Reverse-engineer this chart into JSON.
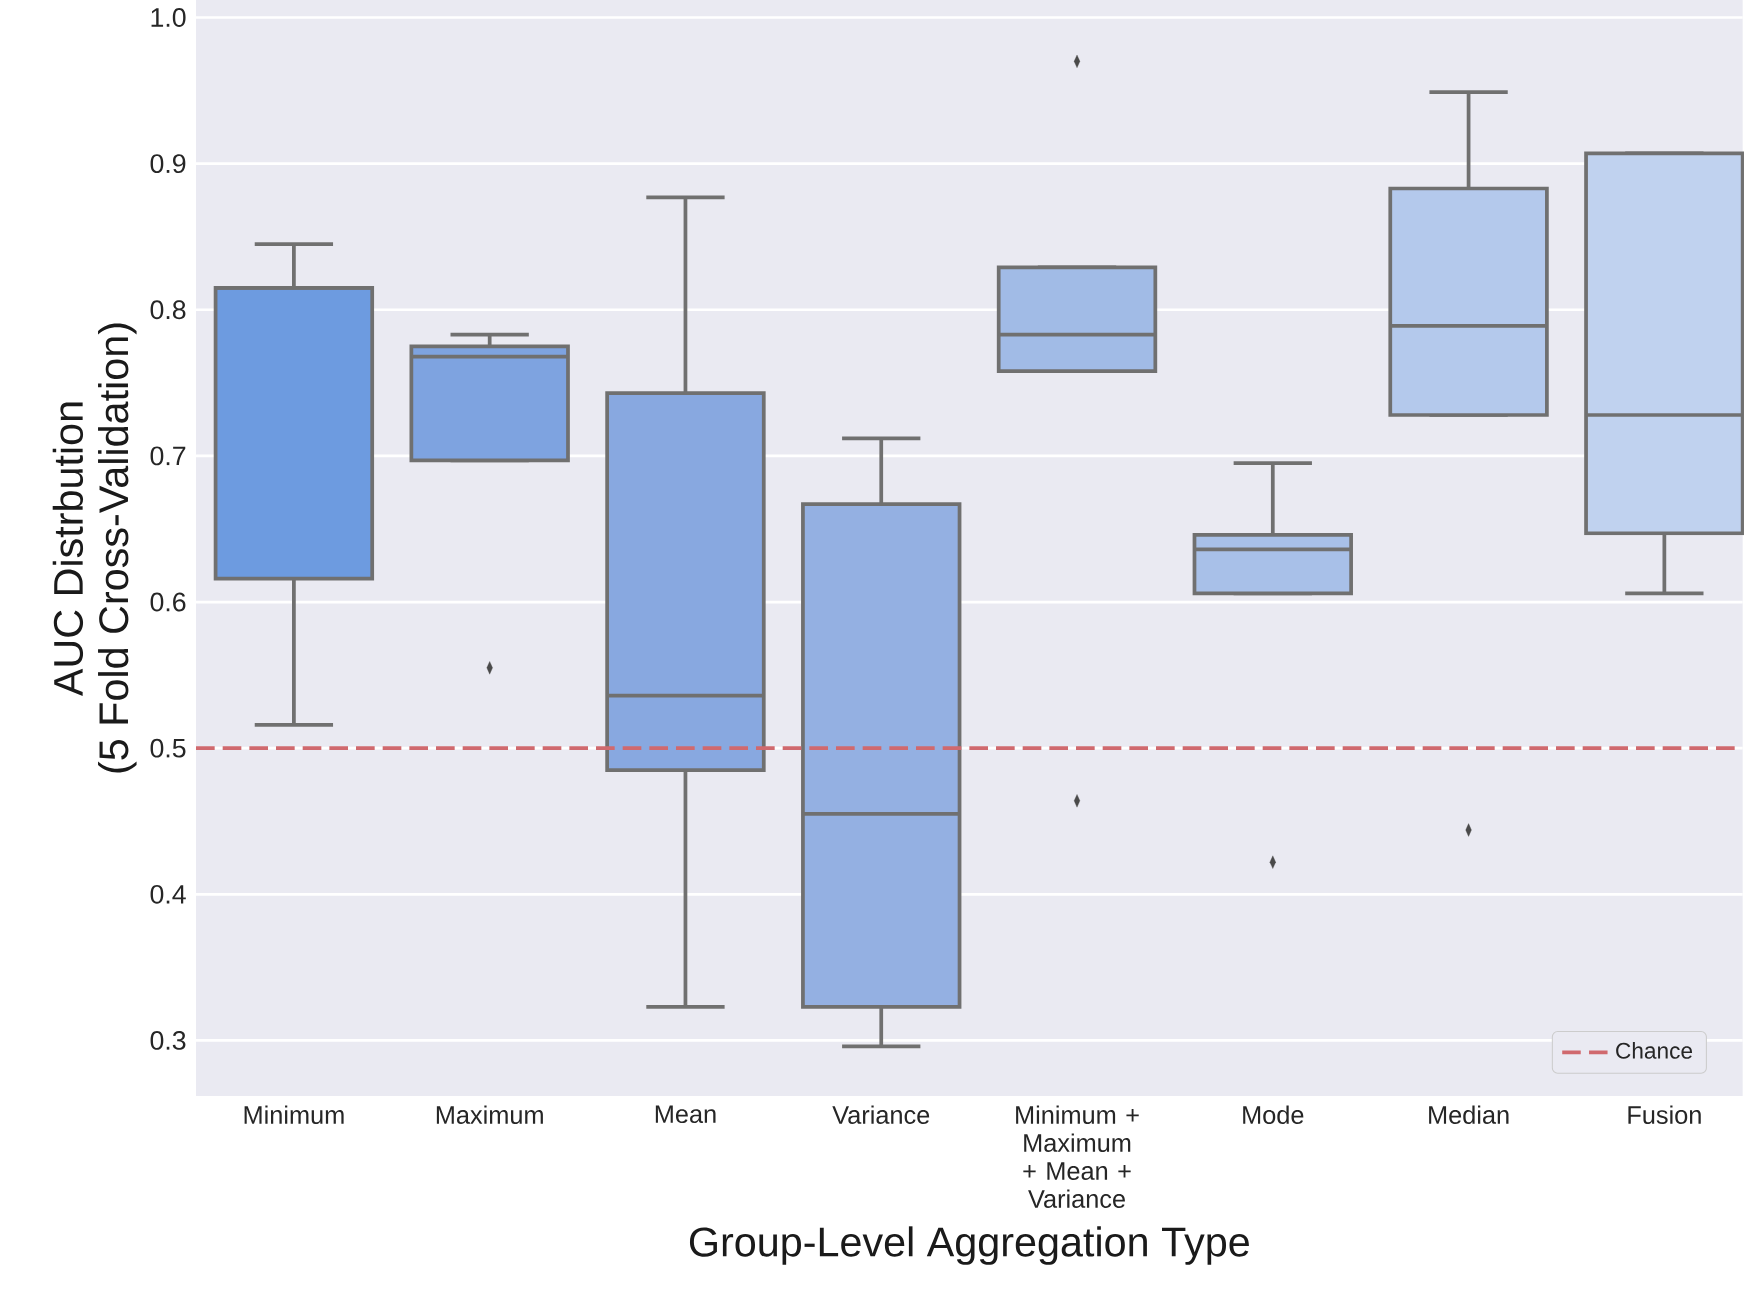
{
  "chart_data": {
    "type": "box",
    "xlabel": "Group-Level Aggregation Type",
    "ylabel": "AUC Distrbution\n(5 Fold Cross-Validation)",
    "categories": [
      "Minimum",
      "Maximum",
      "Mean",
      "Variance",
      "Minimum + Maximum + Mean + Variance",
      "Mode",
      "Median",
      "Fusion"
    ],
    "colors": [
      "#6d9be0",
      "#7ea3e0",
      "#88a8e0",
      "#94b0e2",
      "#a1bbe6",
      "#a8c0e8",
      "#b4c9ec",
      "#c0d2ef"
    ],
    "boxes": [
      {
        "low": 0.516,
        "q1": 0.616,
        "median": 0.815,
        "q3": 0.815,
        "high": 0.845
      },
      {
        "low": 0.697,
        "q1": 0.697,
        "median": 0.768,
        "q3": 0.775,
        "high": 0.783,
        "outliers": [
          0.555
        ]
      },
      {
        "low": 0.323,
        "q1": 0.485,
        "median": 0.536,
        "q3": 0.743,
        "high": 0.877
      },
      {
        "low": 0.296,
        "q1": 0.323,
        "median": 0.455,
        "q3": 0.667,
        "high": 0.712
      },
      {
        "low": 0.758,
        "q1": 0.758,
        "median": 0.783,
        "q3": 0.829,
        "high": 0.829,
        "outliers": [
          0.97,
          0.464
        ]
      },
      {
        "low": 0.606,
        "q1": 0.606,
        "median": 0.636,
        "q3": 0.646,
        "high": 0.695,
        "outliers": [
          0.422
        ]
      },
      {
        "low": 0.728,
        "q1": 0.728,
        "median": 0.789,
        "q3": 0.883,
        "high": 0.949,
        "outliers": [
          0.444
        ]
      },
      {
        "low": 0.606,
        "q1": 0.647,
        "median": 0.728,
        "q3": 0.907,
        "high": 0.907
      }
    ],
    "ylim": [
      0.262,
      1.012
    ],
    "yticks": [
      0.3,
      0.4,
      0.5,
      0.6,
      0.7,
      0.8,
      0.9,
      {
        "value": 1.0,
        "label": "1.0"
      }
    ],
    "grid": "y",
    "marker": "diamond",
    "ref_lines": [
      {
        "axis": "y",
        "value": 0.5,
        "label": "Chance",
        "color": "#d0696e",
        "line_style": "dashed"
      }
    ],
    "legend": "bottom right"
  }
}
